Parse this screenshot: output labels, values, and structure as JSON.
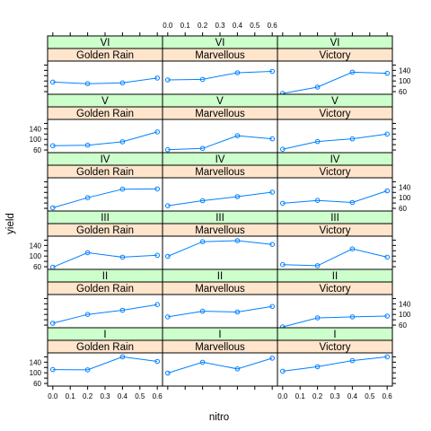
{
  "chart_data": {
    "type": "line",
    "layout": "trellis 3 columns x 6 rows, two strips per panel (block on top, variety below)",
    "xlabel": "nitro",
    "ylabel": "yield",
    "x": [
      0.0,
      0.2,
      0.4,
      0.6
    ],
    "x_ticks": [
      "0.0",
      "0.1",
      "0.2",
      "0.3",
      "0.4",
      "0.5",
      "0.6"
    ],
    "y_ticks": [
      "60",
      "100",
      "140"
    ],
    "xlim": [
      -0.03,
      0.63
    ],
    "ylim": [
      50,
      175
    ],
    "strip_colors": {
      "block": "#ccffcc",
      "variety": "#ffe5cc"
    },
    "series_color": "#0080ff",
    "varieties": [
      "Golden Rain",
      "Marvellous",
      "Victory"
    ],
    "blocks": [
      "VI",
      "V",
      "IV",
      "III",
      "II",
      "I"
    ],
    "panels": [
      {
        "block": "VI",
        "variety": "Golden Rain",
        "values": [
          96,
          90,
          93,
          111
        ]
      },
      {
        "block": "VI",
        "variety": "Marvellous",
        "values": [
          104,
          106,
          131,
          136
        ]
      },
      {
        "block": "VI",
        "variety": "Victory",
        "values": [
          53,
          77,
          133,
          129
        ]
      },
      {
        "block": "V",
        "variety": "Golden Rain",
        "values": [
          76,
          78,
          91,
          128
        ]
      },
      {
        "block": "V",
        "variety": "Marvellous",
        "values": [
          61,
          66,
          114,
          102
        ]
      },
      {
        "block": "V",
        "variety": "Victory",
        "values": [
          63,
          92,
          102,
          120
        ]
      },
      {
        "block": "IV",
        "variety": "Golden Rain",
        "values": [
          62,
          100,
          132,
          133
        ]
      },
      {
        "block": "IV",
        "variety": "Marvellous",
        "values": [
          70,
          89,
          104,
          121
        ]
      },
      {
        "block": "IV",
        "variety": "Victory",
        "values": [
          79,
          90,
          82,
          126
        ]
      },
      {
        "block": "III",
        "variety": "Golden Rain",
        "values": [
          58,
          113,
          96,
          103
        ]
      },
      {
        "block": "III",
        "variety": "Marvellous",
        "values": [
          99,
          154,
          158,
          144
        ]
      },
      {
        "block": "III",
        "variety": "Victory",
        "values": [
          68,
          64,
          127,
          96
        ]
      },
      {
        "block": "II",
        "variety": "Golden Rain",
        "values": [
          67,
          100,
          116,
          137
        ]
      },
      {
        "block": "II",
        "variety": "Marvellous",
        "values": [
          91,
          112,
          109,
          130
        ]
      },
      {
        "block": "II",
        "variety": "Victory",
        "values": [
          53,
          87,
          91,
          94
        ]
      },
      {
        "block": "I",
        "variety": "Golden Rain",
        "values": [
          112,
          111,
          160,
          143
        ]
      },
      {
        "block": "I",
        "variety": "Marvellous",
        "values": [
          99,
          140,
          115,
          155
        ]
      },
      {
        "block": "I",
        "variety": "Victory",
        "values": [
          106,
          123,
          146,
          160
        ]
      }
    ]
  }
}
